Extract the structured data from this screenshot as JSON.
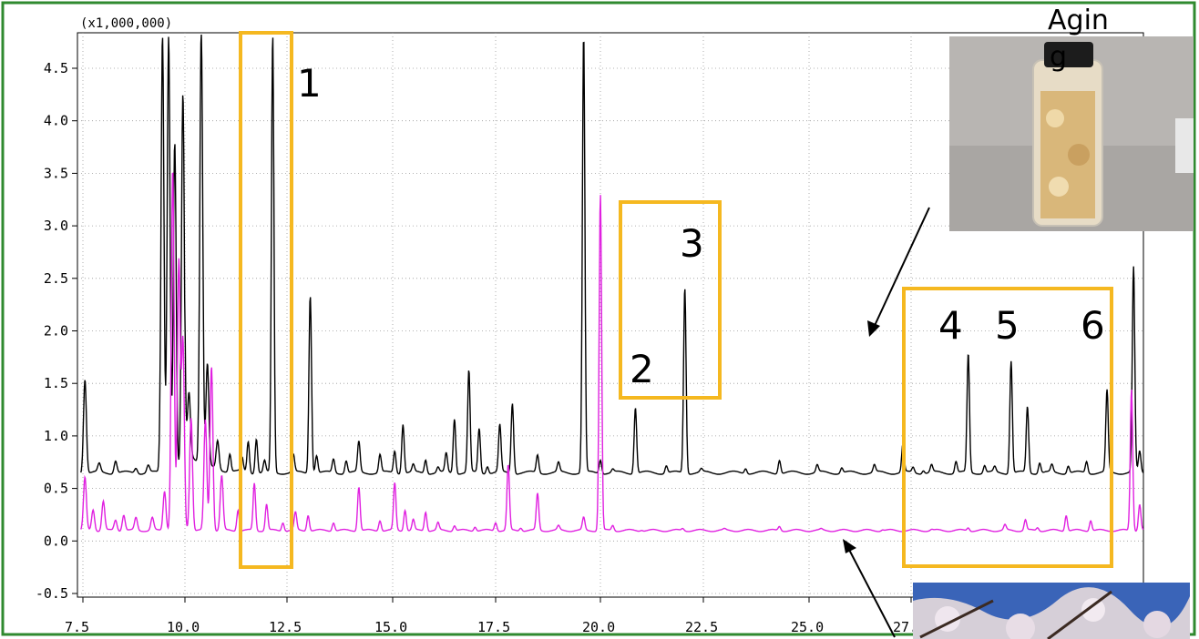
{
  "chart_data": {
    "type": "line",
    "scale_label": "(x1,000,000)",
    "x_ticks": [
      "7.5",
      "10.0",
      "12.5",
      "15.0",
      "17.5",
      "20.0",
      "22.5",
      "25.0",
      "27.5"
    ],
    "x_tick_values": [
      7.5,
      10.0,
      12.5,
      15.0,
      17.5,
      20.0,
      22.5,
      25.0,
      27.5
    ],
    "y_ticks": [
      "4.5",
      "4.0",
      "3.5",
      "3.0",
      "2.5",
      "2.0",
      "1.5",
      "1.0",
      "0.5",
      "0.0",
      "-0.5"
    ],
    "y_tick_values": [
      4.5,
      4.0,
      3.5,
      3.0,
      2.5,
      2.0,
      1.5,
      1.0,
      0.5,
      0.0,
      -0.5
    ],
    "xlim": [
      7.4,
      30.3
    ],
    "ylim": [
      -0.78,
      4.82
    ],
    "grid": true,
    "series": [
      {
        "color": "#000000",
        "baseline": 0.65,
        "peaks": [
          [
            7.55,
            1.55
          ],
          [
            7.9,
            0.73
          ],
          [
            8.3,
            0.77
          ],
          [
            8.8,
            0.7
          ],
          [
            9.1,
            0.72
          ],
          [
            9.45,
            4.82
          ],
          [
            9.6,
            4.82
          ],
          [
            9.75,
            3.8
          ],
          [
            9.95,
            4.25
          ],
          [
            10.1,
            1.22
          ],
          [
            10.4,
            4.82
          ],
          [
            10.55,
            1.62
          ],
          [
            10.8,
            0.92
          ],
          [
            11.1,
            0.82
          ],
          [
            11.4,
            0.78
          ],
          [
            11.55,
            0.95
          ],
          [
            11.75,
            0.98
          ],
          [
            11.95,
            0.76
          ],
          [
            12.15,
            4.82
          ],
          [
            12.65,
            0.82
          ],
          [
            13.05,
            2.35
          ],
          [
            13.2,
            0.82
          ],
          [
            13.6,
            0.78
          ],
          [
            13.9,
            0.77
          ],
          [
            14.2,
            0.94
          ],
          [
            14.7,
            0.82
          ],
          [
            15.05,
            0.86
          ],
          [
            15.25,
            1.12
          ],
          [
            15.5,
            0.72
          ],
          [
            15.8,
            0.78
          ],
          [
            16.1,
            0.7
          ],
          [
            16.3,
            0.83
          ],
          [
            16.5,
            1.17
          ],
          [
            16.85,
            1.62
          ],
          [
            17.1,
            1.07
          ],
          [
            17.3,
            0.72
          ],
          [
            17.6,
            1.1
          ],
          [
            17.9,
            1.32
          ],
          [
            18.5,
            0.82
          ],
          [
            19.0,
            0.74
          ],
          [
            19.6,
            4.82
          ],
          [
            20.0,
            0.78
          ],
          [
            20.3,
            0.68
          ],
          [
            20.85,
            1.28
          ],
          [
            21.6,
            0.72
          ],
          [
            22.05,
            2.42
          ],
          [
            22.45,
            0.68
          ],
          [
            23.5,
            0.7
          ],
          [
            24.3,
            0.78
          ],
          [
            25.2,
            0.72
          ],
          [
            25.8,
            0.7
          ],
          [
            26.6,
            0.72
          ],
          [
            27.3,
            0.92
          ],
          [
            27.55,
            0.7
          ],
          [
            27.8,
            0.68
          ],
          [
            28.0,
            0.72
          ],
          [
            28.6,
            0.76
          ],
          [
            28.9,
            1.78
          ],
          [
            29.3,
            0.72
          ],
          [
            29.55,
            0.7
          ],
          [
            29.95,
            1.72
          ],
          [
            30.35,
            1.28
          ],
          [
            30.65,
            0.75
          ],
          [
            30.95,
            0.72
          ],
          [
            31.35,
            0.72
          ],
          [
            31.8,
            0.76
          ],
          [
            32.3,
            1.43
          ],
          [
            32.95,
            2.6
          ],
          [
            33.1,
            0.85
          ]
        ]
      },
      {
        "color": "#e020e0",
        "baseline": 0.1,
        "peaks": [
          [
            7.55,
            0.6
          ],
          [
            7.75,
            0.3
          ],
          [
            8.0,
            0.38
          ],
          [
            8.3,
            0.2
          ],
          [
            8.5,
            0.25
          ],
          [
            8.8,
            0.22
          ],
          [
            9.2,
            0.22
          ],
          [
            9.5,
            0.48
          ],
          [
            9.7,
            3.55
          ],
          [
            9.85,
            2.65
          ],
          [
            9.95,
            1.9
          ],
          [
            10.15,
            1.18
          ],
          [
            10.5,
            1.15
          ],
          [
            10.65,
            1.67
          ],
          [
            10.9,
            0.62
          ],
          [
            11.3,
            0.3
          ],
          [
            11.7,
            0.55
          ],
          [
            12.0,
            0.35
          ],
          [
            12.4,
            0.18
          ],
          [
            12.7,
            0.27
          ],
          [
            13.0,
            0.25
          ],
          [
            13.6,
            0.18
          ],
          [
            14.2,
            0.52
          ],
          [
            14.7,
            0.2
          ],
          [
            15.05,
            0.55
          ],
          [
            15.3,
            0.3
          ],
          [
            15.5,
            0.2
          ],
          [
            15.8,
            0.28
          ],
          [
            16.1,
            0.17
          ],
          [
            16.5,
            0.15
          ],
          [
            17.0,
            0.14
          ],
          [
            17.5,
            0.18
          ],
          [
            17.8,
            0.72
          ],
          [
            18.1,
            0.13
          ],
          [
            18.5,
            0.45
          ],
          [
            19.0,
            0.14
          ],
          [
            19.6,
            0.22
          ],
          [
            20.0,
            3.3
          ],
          [
            20.3,
            0.15
          ],
          [
            21.0,
            0.11
          ],
          [
            22.0,
            0.12
          ],
          [
            23.0,
            0.11
          ],
          [
            24.3,
            0.14
          ],
          [
            25.3,
            0.11
          ],
          [
            26.8,
            0.11
          ],
          [
            28.0,
            0.11
          ],
          [
            28.9,
            0.13
          ],
          [
            29.8,
            0.15
          ],
          [
            30.3,
            0.2
          ],
          [
            30.6,
            0.13
          ],
          [
            31.3,
            0.25
          ],
          [
            31.9,
            0.2
          ],
          [
            32.9,
            1.45
          ],
          [
            33.1,
            0.35
          ]
        ]
      }
    ],
    "annotations": [
      {
        "label": "1",
        "box": [
          11.7,
          12.8,
          -0.27,
          4.82
        ]
      },
      {
        "label": "2",
        "box": [
          20.2,
          23.0,
          1.36,
          3.24
        ]
      },
      {
        "label": "3",
        "box": null
      },
      {
        "label": "4",
        "box": [
          27.2,
          31.4,
          -0.24,
          2.35
        ]
      },
      {
        "label": "5",
        "box": null
      },
      {
        "label": "6",
        "box": null
      }
    ],
    "inset_top_label": "Agin\ng"
  },
  "colors": {
    "frame": "#2f8a2f",
    "box": "#f5b820",
    "black_trace": "#000000",
    "magenta_trace": "#e020e0"
  }
}
